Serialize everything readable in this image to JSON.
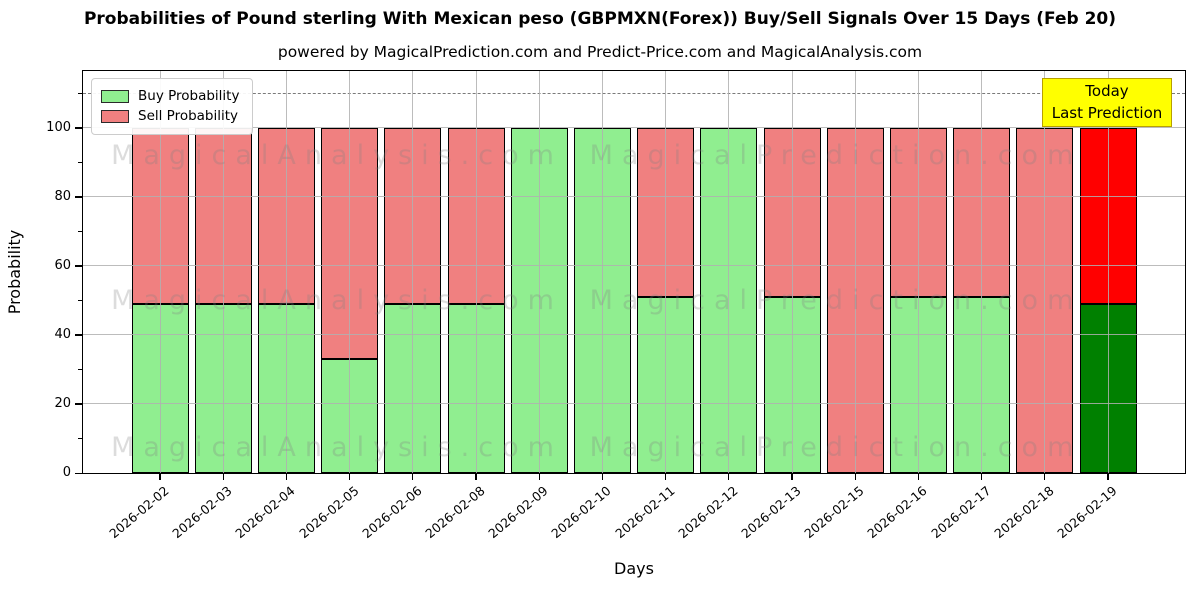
{
  "title": "Probabilities of Pound sterling With Mexican peso (GBPMXN(Forex)) Buy/Sell Signals Over 15 Days (Feb 20)",
  "subtitle": "powered by MagicalPrediction.com and Predict-Price.com and MagicalAnalysis.com",
  "legend": {
    "buy_label": "Buy Probability",
    "sell_label": "Sell Probability"
  },
  "annotation": {
    "line1": "Today",
    "line2": "Last Prediction"
  },
  "watermarks": {
    "left_text": "MagicalAnalysis.com",
    "right_text": "MagicalPrediction.com"
  },
  "colors": {
    "buy": "#90ee90",
    "sell": "#f08080",
    "today_buy": "#008000",
    "today_sell": "#ff0000",
    "bar_edge": "#000000",
    "grid": "#b0b0b0",
    "threshold": "#7a7a7a",
    "annotation_bg": "#ffff00",
    "annotation_border": "#b8a000",
    "watermark": "rgba(128,128,128,0.28)"
  },
  "chart_data": {
    "type": "bar",
    "stacked": true,
    "title": "Probabilities of Pound sterling With Mexican peso (GBPMXN(Forex)) Buy/Sell Signals Over 15 Days (Feb 20)",
    "categories": [
      "2026-02-02",
      "2026-02-03",
      "2026-02-04",
      "2026-02-05",
      "2026-02-06",
      "2026-02-08",
      "2026-02-09",
      "2026-02-10",
      "2026-02-11",
      "2026-02-12",
      "2026-02-13",
      "2026-02-15",
      "2026-02-16",
      "2026-02-17",
      "2026-02-18",
      "2026-02-19"
    ],
    "series": [
      {
        "name": "Buy Probability",
        "values": [
          49,
          49,
          49,
          33,
          49,
          49,
          100,
          100,
          51,
          100,
          51,
          0,
          51,
          51,
          0,
          49
        ]
      },
      {
        "name": "Sell Probability",
        "values": [
          51,
          51,
          51,
          67,
          51,
          51,
          0,
          0,
          49,
          0,
          49,
          100,
          49,
          49,
          100,
          51
        ]
      }
    ],
    "today_index": 15,
    "xlabel": "Days",
    "ylabel": "Probability",
    "yticks": [
      0,
      20,
      40,
      60,
      80,
      100
    ],
    "ylim": [
      0,
      116.5
    ],
    "threshold_value": 110,
    "grid": true,
    "legend_position": "upper left"
  }
}
